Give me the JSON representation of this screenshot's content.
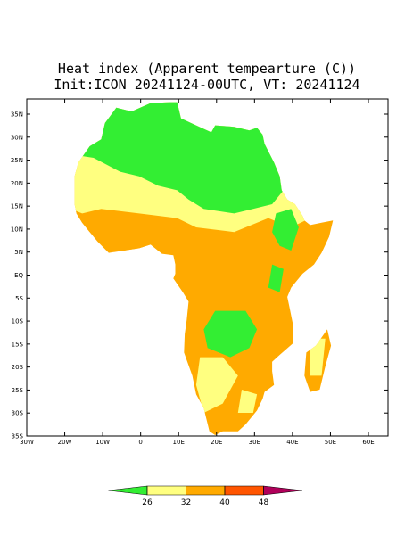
{
  "title": "Heat index (Apparent tempearture (C))",
  "subtitle": "Init:ICON 20241124-00UTC, VT: 20241124",
  "lat_labels": [
    "35N",
    "30N",
    "25N",
    "20N",
    "15N",
    "10N",
    "5N",
    "EQ",
    "5S",
    "10S",
    "15S",
    "20S",
    "25S",
    "30S",
    "35S"
  ],
  "lon_labels": [
    "30W",
    "20W",
    "10W",
    "0",
    "10E",
    "20E",
    "30E",
    "40E",
    "50E",
    "60E"
  ],
  "colorbar": {
    "levels": [
      26,
      32,
      40,
      48
    ],
    "colors": [
      "#33ee33",
      "#ffff80",
      "#ffaa00",
      "#ff5500",
      "#b0005a"
    ]
  }
}
